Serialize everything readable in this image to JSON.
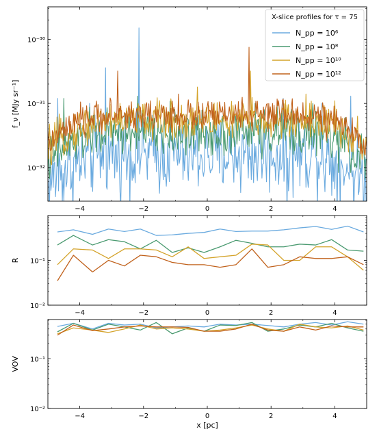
{
  "chart_data": [
    {
      "type": "line",
      "panel": "top",
      "ylabel": "f_ν [MJy sr⁻¹]",
      "yscale": "log",
      "xlim": [
        -5,
        5
      ],
      "ylim": [
        3e-33,
        3.2e-30
      ],
      "x_ticks": [
        -4,
        -2,
        0,
        2,
        4
      ],
      "y_ticks": [
        {
          "value": 1e-32,
          "label": "10⁻³²"
        },
        {
          "value": 1e-31,
          "label": "10⁻³¹"
        },
        {
          "value": 1e-30,
          "label": "10⁻³⁰"
        }
      ],
      "legend": {
        "placement": "top-right",
        "title": "X-slice profiles for τ = 75",
        "entries": [
          "N_pp = 10⁶",
          "N_pp = 10⁸",
          "N_pp = 10¹⁰",
          "N_pp = 10¹²"
        ]
      },
      "series": [
        {
          "name": "N_pp = 10⁶",
          "color": "#6aaadf",
          "base": 1.6e-32,
          "noise": 0.75,
          "spikes": [
            [
              -4.7,
              1.2e-31
            ],
            [
              -3.7,
              1e-31
            ],
            [
              -3.2,
              3.6e-31
            ],
            [
              -2.15,
              1.5e-30
            ],
            [
              2.5,
              2e-33
            ],
            [
              3.6,
              1e-31
            ],
            [
              4.5,
              1.3e-31
            ]
          ]
        },
        {
          "name": "N_pp = 10⁸",
          "color": "#4a9a70",
          "base": 3.5e-32,
          "noise": 0.45,
          "spikes": [
            [
              -4.5,
              1.2e-31
            ],
            [
              -2.2,
              1.3e-31
            ],
            [
              1.5,
              1e-31
            ],
            [
              3.3,
              1e-31
            ]
          ]
        },
        {
          "name": "N_pp = 10¹⁰",
          "color": "#d4a32a",
          "base": 5.5e-32,
          "noise": 0.38,
          "spikes": [
            [
              -0.3,
              1.8e-31
            ],
            [
              1.35,
              3.2e-31
            ],
            [
              3.1,
              1.4e-31
            ],
            [
              4.0,
              1.1e-31
            ]
          ]
        },
        {
          "name": "N_pp = 10¹²",
          "color": "#c0601a",
          "base": 6.5e-32,
          "noise": 0.3,
          "spikes": [
            [
              -2.8,
              3.2e-31
            ],
            [
              1.3,
              7.5e-31
            ],
            [
              -0.9,
              1.4e-31
            ]
          ]
        }
      ]
    },
    {
      "type": "line",
      "panel": "middle",
      "ylabel": "R",
      "yscale": "log",
      "xlim": [
        -5,
        5
      ],
      "ylim": [
        0.01,
        1.0
      ],
      "x_ticks": [
        -4,
        -2,
        0,
        2,
        4
      ],
      "y_ticks": [
        {
          "value": 0.01,
          "label": "10⁻²"
        },
        {
          "value": 0.1,
          "label": "10⁻¹"
        }
      ],
      "x": [
        -4.7,
        -4.2,
        -3.6,
        -3.1,
        -2.6,
        -2.1,
        -1.6,
        -1.1,
        -0.6,
        -0.1,
        0.4,
        0.9,
        1.4,
        1.9,
        2.4,
        2.9,
        3.4,
        3.9,
        4.4,
        4.9
      ],
      "series": [
        {
          "name": "N_pp = 10⁶",
          "color": "#6aaadf",
          "values": [
            0.43,
            0.48,
            0.38,
            0.5,
            0.44,
            0.5,
            0.36,
            0.37,
            0.4,
            0.42,
            0.5,
            0.44,
            0.45,
            0.45,
            0.48,
            0.53,
            0.57,
            0.49,
            0.58,
            0.43
          ]
        },
        {
          "name": "N_pp = 10⁸",
          "color": "#4a9a70",
          "values": [
            0.22,
            0.36,
            0.22,
            0.29,
            0.26,
            0.18,
            0.28,
            0.15,
            0.19,
            0.15,
            0.2,
            0.28,
            0.24,
            0.2,
            0.2,
            0.23,
            0.22,
            0.29,
            0.17,
            0.16
          ]
        },
        {
          "name": "N_pp = 10¹⁰",
          "color": "#d4a32a",
          "values": [
            0.08,
            0.18,
            0.17,
            0.11,
            0.18,
            0.18,
            0.17,
            0.12,
            0.2,
            0.11,
            0.12,
            0.13,
            0.23,
            0.22,
            0.1,
            0.1,
            0.2,
            0.2,
            0.12,
            0.06
          ]
        },
        {
          "name": "N_pp = 10¹²",
          "color": "#c0601a",
          "values": [
            0.035,
            0.13,
            0.055,
            0.1,
            0.075,
            0.13,
            0.12,
            0.09,
            0.08,
            0.08,
            0.07,
            0.08,
            0.18,
            0.07,
            0.08,
            0.12,
            0.11,
            0.11,
            0.12,
            0.08
          ]
        }
      ]
    },
    {
      "type": "line",
      "panel": "bottom",
      "ylabel": "VOV",
      "xlabel": "x [pc]",
      "yscale": "log",
      "xlim": [
        -5,
        5
      ],
      "ylim": [
        0.01,
        0.62
      ],
      "x_ticks": [
        -4,
        -2,
        0,
        2,
        4
      ],
      "y_ticks": [
        {
          "value": 0.01,
          "label": "10⁻²"
        },
        {
          "value": 0.1,
          "label": "10⁻¹"
        }
      ],
      "x": [
        -4.7,
        -4.2,
        -3.6,
        -3.1,
        -2.6,
        -2.1,
        -1.6,
        -1.1,
        -0.6,
        -0.1,
        0.4,
        0.9,
        1.4,
        1.9,
        2.4,
        2.9,
        3.4,
        3.9,
        4.4,
        4.9
      ],
      "series": [
        {
          "name": "N_pp = 10⁶",
          "color": "#6aaadf",
          "values": [
            0.45,
            0.52,
            0.4,
            0.52,
            0.48,
            0.5,
            0.42,
            0.44,
            0.46,
            0.44,
            0.5,
            0.48,
            0.5,
            0.47,
            0.44,
            0.5,
            0.54,
            0.48,
            0.56,
            0.5
          ]
        },
        {
          "name": "N_pp = 10⁸",
          "color": "#4a9a70",
          "values": [
            0.35,
            0.52,
            0.38,
            0.5,
            0.44,
            0.38,
            0.54,
            0.32,
            0.42,
            0.36,
            0.48,
            0.47,
            0.54,
            0.36,
            0.4,
            0.48,
            0.44,
            0.52,
            0.42,
            0.36
          ]
        },
        {
          "name": "N_pp = 10¹⁰",
          "color": "#d4a32a",
          "values": [
            0.32,
            0.42,
            0.38,
            0.34,
            0.4,
            0.48,
            0.4,
            0.42,
            0.4,
            0.36,
            0.38,
            0.42,
            0.48,
            0.4,
            0.36,
            0.5,
            0.44,
            0.42,
            0.46,
            0.38
          ]
        },
        {
          "name": "N_pp = 10¹²",
          "color": "#c0601a",
          "values": [
            0.3,
            0.48,
            0.37,
            0.4,
            0.44,
            0.46,
            0.44,
            0.44,
            0.43,
            0.36,
            0.36,
            0.4,
            0.5,
            0.38,
            0.36,
            0.44,
            0.38,
            0.46,
            0.44,
            0.44
          ]
        }
      ]
    }
  ]
}
